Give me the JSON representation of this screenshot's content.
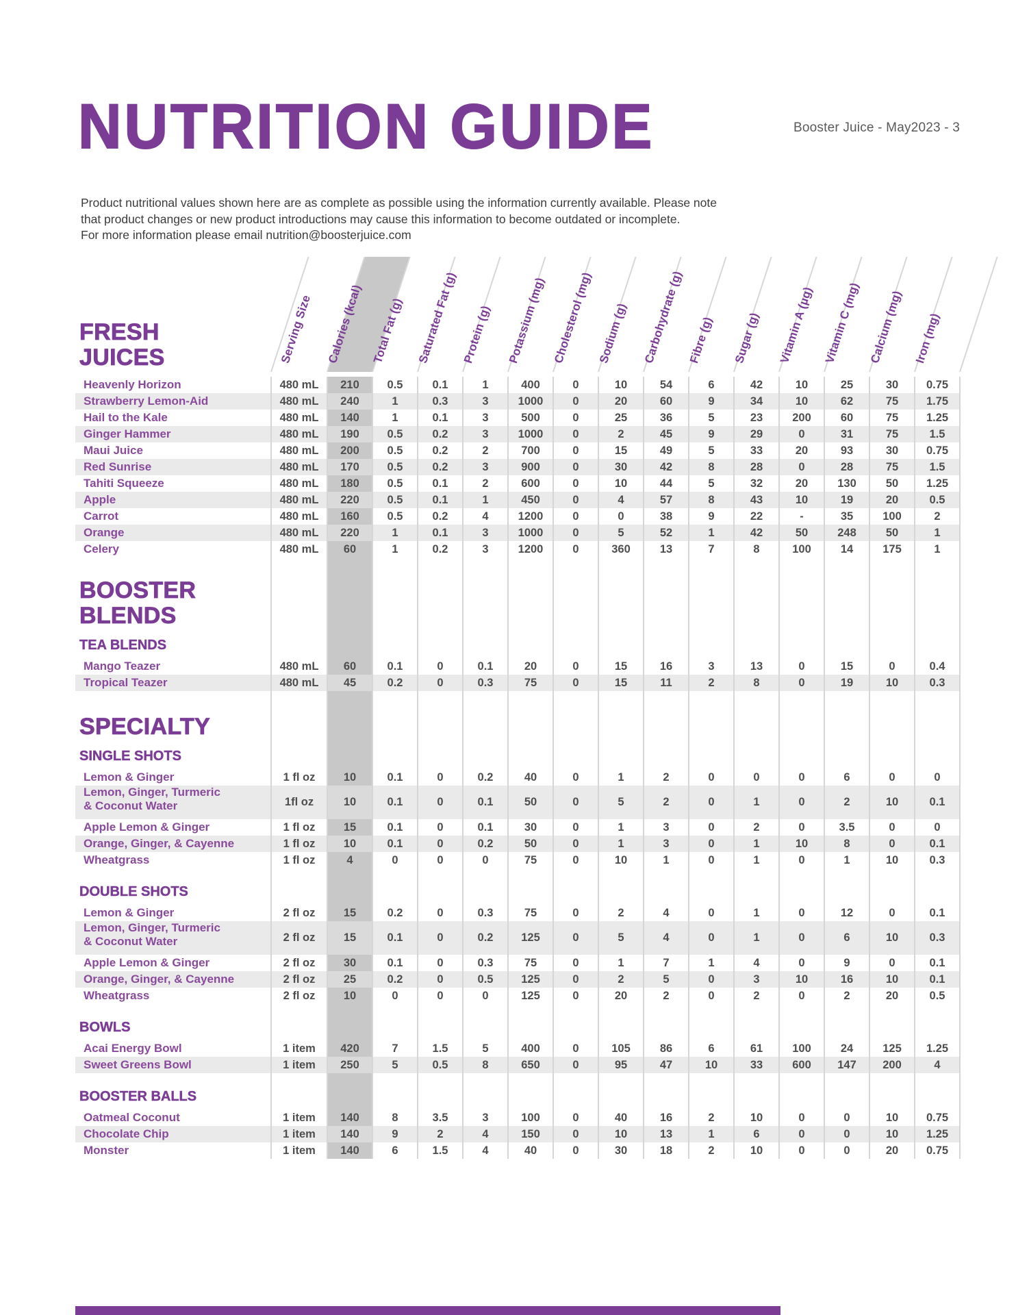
{
  "page": {
    "title": "NUTRITION GUIDE",
    "page_ref": "Booster Juice - May2023 - 3",
    "note_lines": [
      "Product nutritional values shown here are as complete as possible using the information currently available. Please note",
      "that product changes or new product introductions may cause this information to become outdated or incomplete.",
      "For more information please email nutrition@boosterjuice.com"
    ],
    "colors": {
      "accent_purple": "#7b3c96",
      "item_name_purple": "#8a4a9c",
      "calories_band_gray": "#c8c8c8",
      "row_shade_gray": "#eaeaea",
      "divider_gray": "#d6d6d6"
    }
  },
  "table": {
    "columns": [
      "Serving Size",
      "Calories (kcal)",
      "Total Fat (g)",
      "Saturated Fat (g)",
      "Protein (g)",
      "Potassium (mg)",
      "Cholesterol (mg)",
      "Sodium (g)",
      "Carbohydrate (g)",
      "Fibre (g)",
      "Sugar (g)",
      "Vitamin A (µg)",
      "Vitamin C (mg)",
      "Calcium (mg)",
      "Iron (mg)"
    ],
    "sections": [
      {
        "title_lines": [
          "FRESH",
          "JUICES"
        ],
        "groups": [
          {
            "label": null,
            "rows": [
              {
                "name": "Heavenly Horizon",
                "values": [
                  "480 mL",
                  "210",
                  "0.5",
                  "0.1",
                  "1",
                  "400",
                  "0",
                  "10",
                  "54",
                  "6",
                  "42",
                  "10",
                  "25",
                  "30",
                  "0.75"
                ]
              },
              {
                "name": "Strawberry Lemon-Aid",
                "values": [
                  "480 mL",
                  "240",
                  "1",
                  "0.3",
                  "3",
                  "1000",
                  "0",
                  "20",
                  "60",
                  "9",
                  "34",
                  "10",
                  "62",
                  "75",
                  "1.75"
                ]
              },
              {
                "name": "Hail to the Kale",
                "values": [
                  "480 mL",
                  "140",
                  "1",
                  "0.1",
                  "3",
                  "500",
                  "0",
                  "25",
                  "36",
                  "5",
                  "23",
                  "200",
                  "60",
                  "75",
                  "1.25"
                ]
              },
              {
                "name": "Ginger Hammer",
                "values": [
                  "480 mL",
                  "190",
                  "0.5",
                  "0.2",
                  "3",
                  "1000",
                  "0",
                  "2",
                  "45",
                  "9",
                  "29",
                  "0",
                  "31",
                  "75",
                  "1.5"
                ]
              },
              {
                "name": "Maui Juice",
                "values": [
                  "480 mL",
                  "200",
                  "0.5",
                  "0.2",
                  "2",
                  "700",
                  "0",
                  "15",
                  "49",
                  "5",
                  "33",
                  "20",
                  "93",
                  "30",
                  "0.75"
                ]
              },
              {
                "name": "Red Sunrise",
                "values": [
                  "480 mL",
                  "170",
                  "0.5",
                  "0.2",
                  "3",
                  "900",
                  "0",
                  "30",
                  "42",
                  "8",
                  "28",
                  "0",
                  "28",
                  "75",
                  "1.5"
                ]
              },
              {
                "name": "Tahiti Squeeze",
                "values": [
                  "480 mL",
                  "180",
                  "0.5",
                  "0.1",
                  "2",
                  "600",
                  "0",
                  "10",
                  "44",
                  "5",
                  "32",
                  "20",
                  "130",
                  "50",
                  "1.25"
                ]
              },
              {
                "name": "Apple",
                "values": [
                  "480 mL",
                  "220",
                  "0.5",
                  "0.1",
                  "1",
                  "450",
                  "0",
                  "4",
                  "57",
                  "8",
                  "43",
                  "10",
                  "19",
                  "20",
                  "0.5"
                ]
              },
              {
                "name": "Carrot",
                "values": [
                  "480 mL",
                  "160",
                  "0.5",
                  "0.2",
                  "4",
                  "1200",
                  "0",
                  "0",
                  "38",
                  "9",
                  "22",
                  "-",
                  "35",
                  "100",
                  "2"
                ]
              },
              {
                "name": "Orange",
                "values": [
                  "480 mL",
                  "220",
                  "1",
                  "0.1",
                  "3",
                  "1000",
                  "0",
                  "5",
                  "52",
                  "1",
                  "42",
                  "50",
                  "248",
                  "50",
                  "1"
                ]
              },
              {
                "name": "Celery",
                "values": [
                  "480 mL",
                  "60",
                  "1",
                  "0.2",
                  "3",
                  "1200",
                  "0",
                  "360",
                  "13",
                  "7",
                  "8",
                  "100",
                  "14",
                  "175",
                  "1"
                ]
              }
            ]
          }
        ]
      },
      {
        "title_lines": [
          "BOOSTER",
          "BLENDS"
        ],
        "groups": [
          {
            "label": "TEA BLENDS",
            "rows": [
              {
                "name": "Mango Teazer",
                "values": [
                  "480 mL",
                  "60",
                  "0.1",
                  "0",
                  "0.1",
                  "20",
                  "0",
                  "15",
                  "16",
                  "3",
                  "13",
                  "0",
                  "15",
                  "0",
                  "0.4"
                ]
              },
              {
                "name": "Tropical Teazer",
                "values": [
                  "480 mL",
                  "45",
                  "0.2",
                  "0",
                  "0.3",
                  "75",
                  "0",
                  "15",
                  "11",
                  "2",
                  "8",
                  "0",
                  "19",
                  "10",
                  "0.3"
                ]
              }
            ]
          }
        ]
      },
      {
        "title_lines": [
          "SPECIALTY"
        ],
        "groups": [
          {
            "label": "SINGLE SHOTS",
            "rows": [
              {
                "name": "Lemon & Ginger",
                "values": [
                  "1 fl oz",
                  "10",
                  "0.1",
                  "0",
                  "0.2",
                  "40",
                  "0",
                  "1",
                  "2",
                  "0",
                  "0",
                  "0",
                  "6",
                  "0",
                  "0"
                ]
              },
              {
                "name": "Lemon, Ginger, Turmeric & Coconut Water",
                "name_lines": [
                  "Lemon, Ginger, Turmeric",
                  "& Coconut Water"
                ],
                "values": [
                  "1fl oz",
                  "10",
                  "0.1",
                  "0",
                  "0.1",
                  "50",
                  "0",
                  "5",
                  "2",
                  "0",
                  "1",
                  "0",
                  "2",
                  "10",
                  "0.1"
                ]
              },
              {
                "name": "Apple Lemon & Ginger",
                "values": [
                  "1 fl oz",
                  "15",
                  "0.1",
                  "0",
                  "0.1",
                  "30",
                  "0",
                  "1",
                  "3",
                  "0",
                  "2",
                  "0",
                  "3.5",
                  "0",
                  "0"
                ]
              },
              {
                "name": "Orange, Ginger, & Cayenne",
                "values": [
                  "1 fl oz",
                  "10",
                  "0.1",
                  "0",
                  "0.2",
                  "50",
                  "0",
                  "1",
                  "3",
                  "0",
                  "1",
                  "10",
                  "8",
                  "0",
                  "0.1"
                ]
              },
              {
                "name": "Wheatgrass",
                "values": [
                  "1 fl oz",
                  "4",
                  "0",
                  "0",
                  "0",
                  "75",
                  "0",
                  "10",
                  "1",
                  "0",
                  "1",
                  "0",
                  "1",
                  "10",
                  "0.3"
                ]
              }
            ]
          },
          {
            "label": "DOUBLE SHOTS",
            "rows": [
              {
                "name": "Lemon & Ginger",
                "values": [
                  "2 fl oz",
                  "15",
                  "0.2",
                  "0",
                  "0.3",
                  "75",
                  "0",
                  "2",
                  "4",
                  "0",
                  "1",
                  "0",
                  "12",
                  "0",
                  "0.1"
                ]
              },
              {
                "name": "Lemon, Ginger, Turmeric & Coconut Water",
                "name_lines": [
                  "Lemon, Ginger, Turmeric",
                  "& Coconut Water"
                ],
                "values": [
                  "2 fl oz",
                  "15",
                  "0.1",
                  "0",
                  "0.2",
                  "125",
                  "0",
                  "5",
                  "4",
                  "0",
                  "1",
                  "0",
                  "6",
                  "10",
                  "0.3"
                ]
              },
              {
                "name": "Apple Lemon & Ginger",
                "values": [
                  "2 fl oz",
                  "30",
                  "0.1",
                  "0",
                  "0.3",
                  "75",
                  "0",
                  "1",
                  "7",
                  "1",
                  "4",
                  "0",
                  "9",
                  "0",
                  "0.1"
                ]
              },
              {
                "name": "Orange, Ginger, & Cayenne",
                "values": [
                  "2 fl oz",
                  "25",
                  "0.2",
                  "0",
                  "0.5",
                  "125",
                  "0",
                  "2",
                  "5",
                  "0",
                  "3",
                  "10",
                  "16",
                  "10",
                  "0.1"
                ]
              },
              {
                "name": "Wheatgrass",
                "values": [
                  "2 fl oz",
                  "10",
                  "0",
                  "0",
                  "0",
                  "125",
                  "0",
                  "20",
                  "2",
                  "0",
                  "2",
                  "0",
                  "2",
                  "20",
                  "0.5"
                ]
              }
            ]
          },
          {
            "label": "BOWLS",
            "rows": [
              {
                "name": "Acai Energy Bowl",
                "values": [
                  "1 item",
                  "420",
                  "7",
                  "1.5",
                  "5",
                  "400",
                  "0",
                  "105",
                  "86",
                  "6",
                  "61",
                  "100",
                  "24",
                  "125",
                  "1.25"
                ]
              },
              {
                "name": "Sweet Greens Bowl",
                "values": [
                  "1 item",
                  "250",
                  "5",
                  "0.5",
                  "8",
                  "650",
                  "0",
                  "95",
                  "47",
                  "10",
                  "33",
                  "600",
                  "147",
                  "200",
                  "4"
                ]
              }
            ]
          },
          {
            "label": "BOOSTER BALLS",
            "rows": [
              {
                "name": "Oatmeal Coconut",
                "values": [
                  "1 item",
                  "140",
                  "8",
                  "3.5",
                  "3",
                  "100",
                  "0",
                  "40",
                  "16",
                  "2",
                  "10",
                  "0",
                  "0",
                  "10",
                  "0.75"
                ]
              },
              {
                "name": "Chocolate Chip",
                "values": [
                  "1 item",
                  "140",
                  "9",
                  "2",
                  "4",
                  "150",
                  "0",
                  "10",
                  "13",
                  "1",
                  "6",
                  "0",
                  "0",
                  "10",
                  "1.25"
                ]
              },
              {
                "name": "Monster",
                "values": [
                  "1 item",
                  "140",
                  "6",
                  "1.5",
                  "4",
                  "40",
                  "0",
                  "30",
                  "18",
                  "2",
                  "10",
                  "0",
                  "0",
                  "20",
                  "0.75"
                ]
              }
            ]
          }
        ]
      }
    ]
  }
}
